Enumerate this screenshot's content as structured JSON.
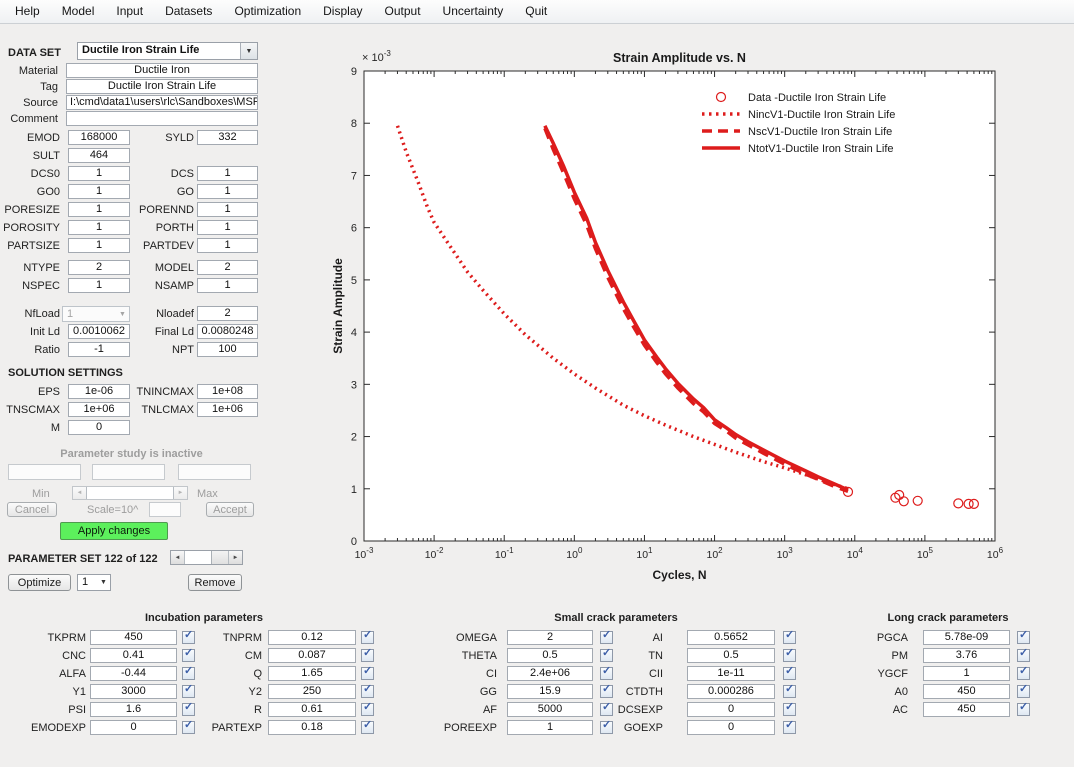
{
  "menu": [
    "Help",
    "Model",
    "Input",
    "Datasets",
    "Optimization",
    "Display",
    "Output",
    "Uncertainty",
    "Quit"
  ],
  "icons": {
    "dropdown_arrow": "▼",
    "checkmark": "✓",
    "arrow_left": "◄",
    "arrow_right": "►"
  },
  "left_panel": {
    "dataset_label": "DATA SET",
    "dataset_value": "Ductile Iron Strain Life",
    "info_rows": [
      {
        "key": "material",
        "label": "Material",
        "value": "Ductile Iron",
        "align": "center"
      },
      {
        "key": "tag",
        "label": "Tag",
        "value": "Ductile Iron Strain Life",
        "align": "center"
      },
      {
        "key": "source",
        "label": "Source",
        "value": "I:\\cmd\\data1\\users\\rlc\\Sandboxes\\MSF_",
        "align": "left"
      },
      {
        "key": "comment",
        "label": "Comment",
        "value": "",
        "align": "left"
      }
    ],
    "sections": [
      {
        "rows": [
          [
            {
              "label": "EMOD",
              "value": "168000"
            },
            {
              "label": "SYLD",
              "value": "332"
            }
          ],
          [
            {
              "label": "SULT",
              "value": "464"
            },
            null
          ],
          [
            {
              "label": "DCS0",
              "value": "1"
            },
            {
              "label": "DCS",
              "value": "1"
            }
          ],
          [
            {
              "label": "GO0",
              "value": "1"
            },
            {
              "label": "GO",
              "value": "1"
            }
          ],
          [
            {
              "label": "PORESIZE",
              "value": "1"
            },
            {
              "label": "PORENND",
              "value": "1"
            }
          ],
          [
            {
              "label": "POROSITY",
              "value": "1"
            },
            {
              "label": "PORTH",
              "value": "1"
            }
          ],
          [
            {
              "label": "PARTSIZE",
              "value": "1"
            },
            {
              "label": "PARTDEV",
              "value": "1"
            }
          ]
        ]
      },
      {
        "rows": [
          [
            {
              "label": "NTYPE",
              "value": "2"
            },
            {
              "label": "MODEL",
              "value": "2"
            }
          ],
          [
            {
              "label": "NSPEC",
              "value": "1"
            },
            {
              "label": "NSAMP",
              "value": "1"
            }
          ]
        ]
      },
      {
        "rows": [
          [
            {
              "label": "NfLoad",
              "value": "1",
              "widget": "dropdown",
              "disabled": true
            },
            {
              "label": "Nloadef",
              "value": "2"
            }
          ],
          [
            {
              "label": "Init Ld",
              "value": "0.0010062"
            },
            {
              "label": "Final Ld",
              "value": "0.0080248"
            }
          ],
          [
            {
              "label": "Ratio",
              "value": "-1"
            },
            {
              "label": "NPT",
              "value": "100"
            }
          ]
        ]
      },
      {
        "heading": "SOLUTION SETTINGS",
        "rows": [
          [
            {
              "label": "EPS",
              "value": "1e-06"
            },
            {
              "label": "TNINCMAX",
              "value": "1e+08"
            }
          ],
          [
            {
              "label": "TNSCMAX",
              "value": "1e+06"
            },
            {
              "label": "TNLCMAX",
              "value": "1e+06"
            }
          ],
          [
            {
              "label": "M",
              "value": "0"
            },
            null
          ]
        ]
      }
    ]
  },
  "param_study": {
    "status": "Parameter study is inactive",
    "min_label": "Min",
    "max_label": "Max",
    "cancel_label": "Cancel",
    "scale_label": "Scale=10^",
    "accept_label": "Accept",
    "apply_label": "Apply changes",
    "apply_color": "#5cf05c"
  },
  "param_set": {
    "title": "PARAMETER SET 122 of 122",
    "optimize_label": "Optimize",
    "selector_value": "1",
    "remove_label": "Remove"
  },
  "param_groups": [
    {
      "title": "Incubation parameters",
      "rows": [
        [
          [
            "TKPRM",
            "450"
          ],
          [
            "TNPRM",
            "0.12"
          ]
        ],
        [
          [
            "CNC",
            "0.41"
          ],
          [
            "CM",
            "0.087"
          ]
        ],
        [
          [
            "ALFA",
            "-0.44"
          ],
          [
            "Q",
            "1.65"
          ]
        ],
        [
          [
            "Y1",
            "3000"
          ],
          [
            "Y2",
            "250"
          ]
        ],
        [
          [
            "PSI",
            "1.6"
          ],
          [
            "R",
            "0.61"
          ]
        ],
        [
          [
            "EMODEXP",
            "0"
          ],
          [
            "PARTEXP",
            "0.18"
          ]
        ]
      ],
      "all_checked": true
    },
    {
      "title": "Small crack parameters",
      "rows": [
        [
          [
            "OMEGA",
            "2"
          ],
          [
            "AI",
            "0.5652"
          ]
        ],
        [
          [
            "THETA",
            "0.5"
          ],
          [
            "TN",
            "0.5"
          ]
        ],
        [
          [
            "CI",
            "2.4e+06"
          ],
          [
            "CII",
            "1e-11"
          ]
        ],
        [
          [
            "GG",
            "15.9"
          ],
          [
            "CTDTH",
            "0.000286"
          ]
        ],
        [
          [
            "AF",
            "5000"
          ],
          [
            "DCSEXP",
            "0"
          ]
        ],
        [
          [
            "POREEXP",
            "1"
          ],
          [
            "GOEXP",
            "0"
          ]
        ]
      ],
      "all_checked": true
    },
    {
      "title": "Long crack parameters",
      "rows": [
        [
          [
            "PGCA",
            "5.78e-09"
          ]
        ],
        [
          [
            "PM",
            "3.76"
          ]
        ],
        [
          [
            "YGCF",
            "1"
          ]
        ],
        [
          [
            "A0",
            "450"
          ]
        ],
        [
          [
            "AC",
            "450"
          ]
        ]
      ],
      "all_checked": true
    }
  ],
  "chart_data": {
    "type": "line",
    "title": "Strain Amplitude vs. N",
    "xlabel": "Cycles, N",
    "ylabel": "Strain Amplitude",
    "x_scale": "log",
    "xlim": [
      0.001,
      1000000
    ],
    "x_tick_exponents": [
      -3,
      -2,
      -1,
      0,
      1,
      2,
      3,
      4,
      5,
      6
    ],
    "y_ticks": [
      0,
      1,
      2,
      3,
      4,
      5,
      6,
      7,
      8,
      9
    ],
    "y_unit_multiplier": "1e-3",
    "y_offset_base": "× 10",
    "y_offset_exp": "-3",
    "ylim_display": [
      0,
      9
    ],
    "grid": false,
    "legend_position": "top-right-inside",
    "series_color": "#dd1c1c",
    "series": [
      {
        "name": "Data -Ductile Iron Strain Life",
        "kind": "scatter",
        "marker": "circle",
        "points": [
          [
            8000,
            0.94
          ],
          [
            38000,
            0.83
          ],
          [
            43000,
            0.88
          ],
          [
            50000,
            0.76
          ],
          [
            79000,
            0.77
          ],
          [
            300000,
            0.72
          ],
          [
            420000,
            0.71
          ],
          [
            500000,
            0.71
          ]
        ]
      },
      {
        "name": "NincV1-Ductile Iron Strain Life",
        "kind": "line",
        "line_style": "dotted",
        "points": [
          [
            0.003,
            7.95
          ],
          [
            0.004,
            7.45
          ],
          [
            0.006,
            6.85
          ],
          [
            0.008,
            6.4
          ],
          [
            0.01,
            6.1
          ],
          [
            0.02,
            5.5
          ],
          [
            0.03,
            5.15
          ],
          [
            0.05,
            4.8
          ],
          [
            0.1,
            4.35
          ],
          [
            0.2,
            3.95
          ],
          [
            0.5,
            3.5
          ],
          [
            1,
            3.2
          ],
          [
            2,
            2.93
          ],
          [
            5,
            2.6
          ],
          [
            10,
            2.4
          ],
          [
            20,
            2.22
          ],
          [
            50,
            2.0
          ],
          [
            100,
            1.85
          ],
          [
            200,
            1.7
          ],
          [
            500,
            1.52
          ],
          [
            1000,
            1.4
          ],
          [
            2000,
            1.27
          ],
          [
            4000,
            1.13
          ],
          [
            8000,
            1.0
          ]
        ]
      },
      {
        "name": "NscV1-Ductile Iron Strain Life",
        "kind": "line",
        "line_style": "dashed",
        "points": [
          [
            0.38,
            7.9
          ],
          [
            0.5,
            7.5
          ],
          [
            0.7,
            7.05
          ],
          [
            1,
            6.55
          ],
          [
            1.5,
            6.05
          ],
          [
            2,
            5.6
          ],
          [
            3,
            5.05
          ],
          [
            5,
            4.45
          ],
          [
            7,
            4.1
          ],
          [
            10,
            3.75
          ],
          [
            15,
            3.42
          ],
          [
            20,
            3.2
          ],
          [
            30,
            2.93
          ],
          [
            50,
            2.63
          ],
          [
            70,
            2.47
          ],
          [
            100,
            2.25
          ],
          [
            150,
            2.1
          ],
          [
            200,
            1.97
          ],
          [
            300,
            1.84
          ],
          [
            500,
            1.68
          ],
          [
            700,
            1.58
          ],
          [
            1000,
            1.47
          ],
          [
            1500,
            1.36
          ],
          [
            2000,
            1.28
          ],
          [
            3000,
            1.18
          ],
          [
            5000,
            1.05
          ],
          [
            8000,
            0.95
          ]
        ]
      },
      {
        "name": "NtotV1-Ductile Iron Strain Life",
        "kind": "line",
        "line_style": "solid",
        "points": [
          [
            0.38,
            7.95
          ],
          [
            0.5,
            7.62
          ],
          [
            0.7,
            7.18
          ],
          [
            1,
            6.68
          ],
          [
            1.5,
            6.18
          ],
          [
            2,
            5.72
          ],
          [
            3,
            5.18
          ],
          [
            5,
            4.58
          ],
          [
            7,
            4.22
          ],
          [
            10,
            3.85
          ],
          [
            15,
            3.52
          ],
          [
            20,
            3.3
          ],
          [
            30,
            3.02
          ],
          [
            50,
            2.72
          ],
          [
            70,
            2.55
          ],
          [
            100,
            2.32
          ],
          [
            150,
            2.16
          ],
          [
            200,
            2.04
          ],
          [
            300,
            1.9
          ],
          [
            500,
            1.74
          ],
          [
            700,
            1.64
          ],
          [
            1000,
            1.53
          ],
          [
            1500,
            1.42
          ],
          [
            2000,
            1.34
          ],
          [
            3000,
            1.23
          ],
          [
            5000,
            1.1
          ],
          [
            8000,
            0.98
          ]
        ]
      }
    ]
  }
}
